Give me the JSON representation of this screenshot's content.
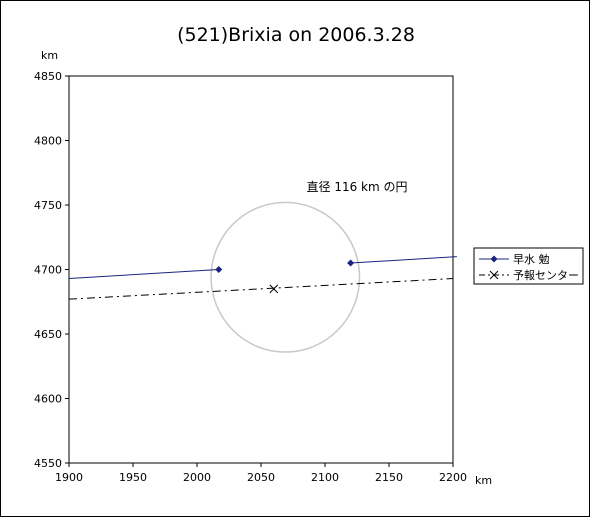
{
  "chart_data": {
    "type": "line",
    "title": "(521)Brixia on 2006.3.28",
    "xlabel": "km",
    "ylabel": "km",
    "xlim": [
      1900,
      2200
    ],
    "ylim": [
      4550,
      4850
    ],
    "x_ticks": [
      1900,
      1950,
      2000,
      2050,
      2100,
      2150,
      2200
    ],
    "y_ticks": [
      4550,
      4600,
      4650,
      4700,
      4750,
      4800,
      4850
    ],
    "grid": false,
    "legend_position": "right",
    "series": [
      {
        "name": "早水 勉",
        "color": "#1a237e",
        "style": "solid",
        "marker": "diamond",
        "segments": [
          {
            "x": [
              1900,
              2017
            ],
            "y": [
              4693,
              4700
            ]
          },
          {
            "x": [
              2120,
              2203
            ],
            "y": [
              4705,
              4710
            ]
          }
        ],
        "marker_points": [
          {
            "x": 2017,
            "y": 4700
          },
          {
            "x": 2120,
            "y": 4705
          }
        ]
      },
      {
        "name": "予報センター",
        "color": "#000000",
        "style": "dashdot",
        "marker": "x",
        "x": [
          1900,
          2200
        ],
        "y": [
          4677,
          4693
        ],
        "marker_points": [
          {
            "x": 2060,
            "y": 4685
          }
        ]
      }
    ],
    "circle": {
      "cx": 2069,
      "cy": 4694,
      "r": 58,
      "color": "#c8c8c8"
    },
    "annotation": "直径 116 km の円"
  }
}
